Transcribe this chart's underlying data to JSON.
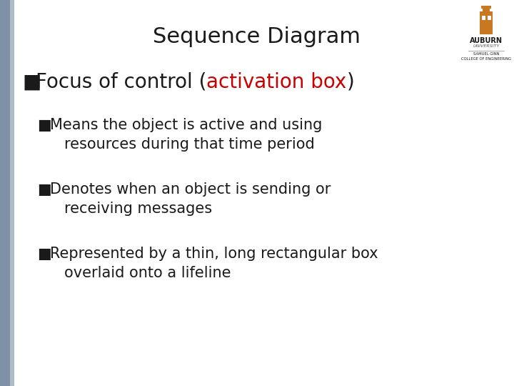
{
  "title": "Sequence Diagram",
  "title_fontsize": 22,
  "title_color": "#1a1a1a",
  "bg_color": "#ffffff",
  "left_bar_color1": "#8090a8",
  "left_bar_color2": "#b0bcc8",
  "text_color": "#1a1a1a",
  "red_color": "#cc0000",
  "orange_color": "#c87820",
  "bullet1_pre": "Focus of control (",
  "bullet1_highlight": "activation box",
  "bullet1_post": ")",
  "bullet1_fontsize": 20,
  "sub_bullet_fontsize": 15,
  "sub_bullets_line1": [
    "Means the object is active and using",
    "Denotes when an object is sending or",
    "Represented by a thin, long rectangular box"
  ],
  "sub_bullets_line2": [
    "resources during that time period",
    "receiving messages",
    "overlaid onto a lifeline"
  ],
  "logo_text1": "AUBURN",
  "logo_text2": "UNIVERSITY",
  "logo_text3": "SAMUEL GINN",
  "logo_text4": "COLLEGE OF ENGINEERING",
  "bullet_symbol": "■"
}
